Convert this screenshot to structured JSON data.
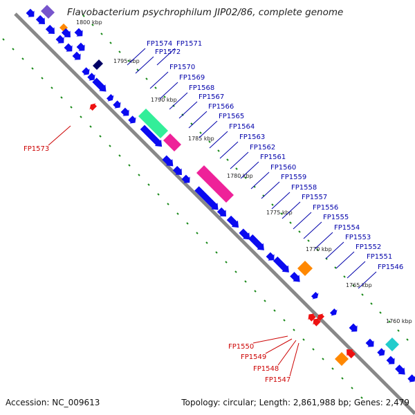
{
  "title": "Flavobacterium psychrophilum JIP02/86, complete genome",
  "footer": {
    "accession": "Accession: NC_009613",
    "summary": "Topology: circular; Length: 2,861,988 bp; Genes: 2,479"
  },
  "colors": {
    "forward_gene": "#0a0af0",
    "reverse_gene": "#ee1111",
    "forward_label": "#0000aa",
    "reverse_label": "#cc0000",
    "backbone": "#888888",
    "dots": "#1a8a1a",
    "feature_green": "#33ee99",
    "feature_magenta": "#ee2299",
    "feature_orange": "#ff8800",
    "feature_purple": "#7755cc",
    "feature_navy": "#000066",
    "feature_cyan": "#22cccc"
  },
  "kbp_ticks": [
    "1800 kbp",
    "1795 kbp",
    "1790 kbp",
    "1785 kbp",
    "1780 kbp",
    "1775 kbp",
    "1770 kbp",
    "1765 kbp",
    "1760 kbp"
  ],
  "forward_labels": [
    "FP1574",
    "FP1571",
    "FP1572",
    "FP1570",
    "FP1569",
    "FP1568",
    "FP1567",
    "FP1566",
    "FP1565",
    "FP1564",
    "FP1563",
    "FP1562",
    "FP1561",
    "FP1560",
    "FP1559",
    "FP1558",
    "FP1557",
    "FP1556",
    "FP1555",
    "FP1554",
    "FP1553",
    "FP1552",
    "FP1551",
    "FP1546"
  ],
  "reverse_labels": [
    "FP1573",
    "FP1550",
    "FP1549",
    "FP1548",
    "FP1547"
  ]
}
